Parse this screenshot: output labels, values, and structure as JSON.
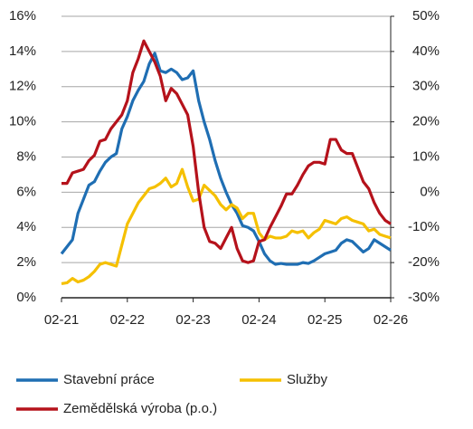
{
  "chart_data": {
    "type": "line",
    "categories": [
      "02-21",
      null,
      null,
      null,
      null,
      null,
      null,
      null,
      null,
      null,
      null,
      null,
      "02-22",
      null,
      null,
      null,
      null,
      null,
      null,
      null,
      null,
      null,
      null,
      null,
      "02-23",
      null,
      null,
      null,
      null,
      null,
      null,
      null,
      null,
      null,
      null,
      null,
      "02-24",
      null,
      null,
      null,
      null,
      null,
      null,
      null,
      null,
      null,
      null,
      null,
      "02-25",
      null,
      null,
      null,
      null,
      null,
      null,
      null,
      null,
      null,
      null,
      null,
      "02-26"
    ],
    "series": [
      {
        "name": "Stavební práce",
        "color": "#1f6eb3",
        "values": [
          2.5,
          2.9,
          3.3,
          4.8,
          5.6,
          6.4,
          6.6,
          7.2,
          7.7,
          8.0,
          8.2,
          9.6,
          10.3,
          11.2,
          11.8,
          12.3,
          13.3,
          13.9,
          12.9,
          12.8,
          13.0,
          12.8,
          12.4,
          12.5,
          12.9,
          11.2,
          10.0,
          9.0,
          7.8,
          6.8,
          6.0,
          5.3,
          4.8,
          4.1,
          4.0,
          3.8,
          3.2,
          2.5,
          2.1,
          1.9,
          1.95,
          1.9,
          1.9,
          1.9,
          2.0,
          1.95,
          2.1,
          2.3,
          2.5,
          2.6,
          2.7,
          3.1,
          3.3,
          3.2,
          2.9,
          2.6,
          2.8,
          3.3,
          3.1,
          2.9,
          2.7
        ]
      },
      {
        "name": "Služby",
        "color": "#f5c000",
        "values": [
          0.8,
          0.85,
          1.1,
          0.9,
          1.0,
          1.2,
          1.5,
          1.9,
          2.0,
          1.9,
          1.8,
          3.0,
          4.2,
          4.8,
          5.4,
          5.8,
          6.2,
          6.3,
          6.5,
          6.8,
          6.3,
          6.5,
          7.3,
          6.3,
          5.5,
          5.6,
          6.4,
          6.1,
          5.8,
          5.3,
          5.0,
          5.3,
          5.1,
          4.5,
          4.8,
          4.8,
          3.7,
          3.3,
          3.5,
          3.4,
          3.4,
          3.5,
          3.8,
          3.7,
          3.8,
          3.4,
          3.7,
          3.9,
          4.4,
          4.3,
          4.2,
          4.5,
          4.6,
          4.4,
          4.3,
          4.2,
          3.8,
          3.9,
          3.6,
          3.5,
          3.4
        ]
      },
      {
        "name": "Zemědělská výroba (p.o.)",
        "color": "#b5121b",
        "axis": "y2",
        "values": [
          2.5,
          2.5,
          5.5,
          6,
          6.5,
          9,
          10.5,
          14.5,
          15,
          18,
          20,
          22,
          26,
          34,
          38,
          43,
          40,
          37,
          33,
          26,
          29.5,
          28,
          25,
          22,
          13,
          0,
          -10,
          -14,
          -14.5,
          -16,
          -13,
          -10,
          -16,
          -19.5,
          -20,
          -19.5,
          -14,
          -13.5,
          -10,
          -7,
          -4,
          -0.5,
          -0.5,
          2,
          5,
          7.5,
          8.5,
          8.5,
          8,
          15,
          15,
          12,
          11,
          11,
          7,
          3,
          1,
          -3,
          -6,
          -8,
          -9
        ]
      }
    ],
    "ylim": [
      0,
      16
    ],
    "yticks": [
      {
        "value": 0,
        "label": "0%"
      },
      {
        "value": 2,
        "label": "2%"
      },
      {
        "value": 4,
        "label": "4%"
      },
      {
        "value": 6,
        "label": "6%"
      },
      {
        "value": 8,
        "label": "8%"
      },
      {
        "value": 10,
        "label": "10%"
      },
      {
        "value": 12,
        "label": "12%"
      },
      {
        "value": 14,
        "label": "14%"
      },
      {
        "value": 16,
        "label": "16%"
      }
    ],
    "y2lim": [
      -30,
      50
    ],
    "y2ticks": [
      {
        "value": -30,
        "label": "-30%"
      },
      {
        "value": -20,
        "label": "-20%"
      },
      {
        "value": -10,
        "label": "-10%"
      },
      {
        "value": 0,
        "label": "0%"
      },
      {
        "value": 10,
        "label": "10%"
      },
      {
        "value": 20,
        "label": "20%"
      },
      {
        "value": 30,
        "label": "30%"
      },
      {
        "value": 40,
        "label": "40%"
      },
      {
        "value": 50,
        "label": "50%"
      }
    ],
    "grid": true
  }
}
